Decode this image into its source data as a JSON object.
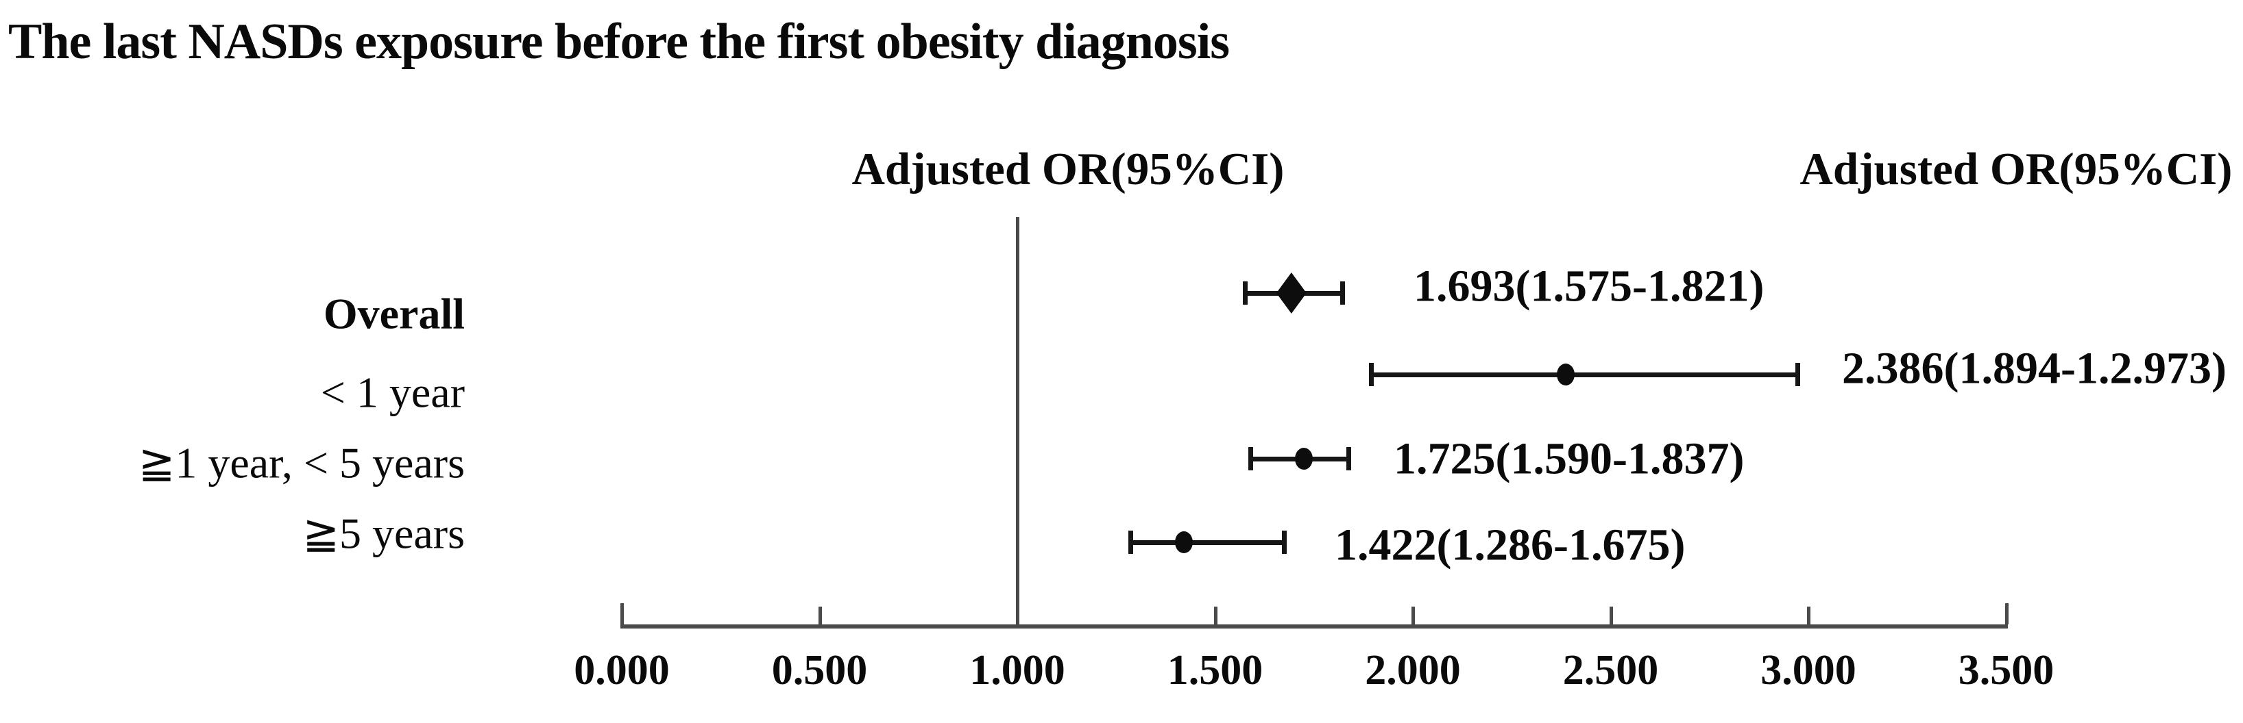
{
  "title": "The last NASDs exposure before the first obesity diagnosis",
  "headers": {
    "left": "Adjusted OR(95%CI)",
    "right": "Adjusted OR(95%CI)"
  },
  "chart_data": {
    "type": "forest-plot",
    "title": "The last NASDs exposure before the first obesity diagnosis",
    "column_headers": [
      "Adjusted OR(95%CI)",
      "Adjusted OR(95%CI)"
    ],
    "rows": [
      {
        "label": "Overall",
        "bold": true,
        "marker": "diamond",
        "or": 1.693,
        "ci_low": 1.575,
        "ci_high": 1.821,
        "value_text": "1.693(1.575-1.821)"
      },
      {
        "label": "< 1 year",
        "bold": false,
        "marker": "circle",
        "or": 2.386,
        "ci_low": 1.894,
        "ci_high": 2.973,
        "value_text": "2.386(1.894-1.2.973)"
      },
      {
        "label": "≧1 year, < 5 years",
        "bold": false,
        "marker": "circle",
        "or": 1.725,
        "ci_low": 1.59,
        "ci_high": 1.837,
        "value_text": "1.725(1.590-1.837)"
      },
      {
        "label": "≧5 years",
        "bold": false,
        "marker": "circle",
        "or": 1.422,
        "ci_low": 1.286,
        "ci_high": 1.675,
        "value_text": "1.422(1.286-1.675)"
      }
    ],
    "x_axis": {
      "min": 0,
      "max": 3.5,
      "tick_labels": [
        "0.000",
        "0.500",
        "1.000",
        "1.500",
        "2.000",
        "2.500",
        "3.000",
        "3.500"
      ],
      "reference_line": 1.0,
      "grid": false
    }
  }
}
